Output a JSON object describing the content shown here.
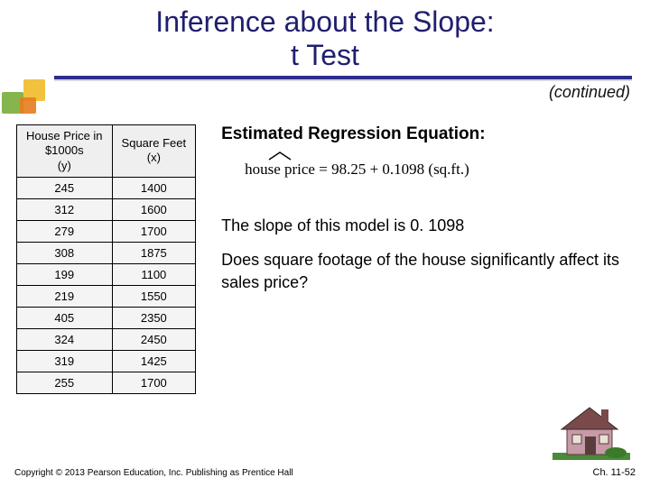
{
  "title": {
    "line1": "Inference about the Slope:",
    "line2": "t Test"
  },
  "continued": "(continued)",
  "table": {
    "headers": {
      "col1": "House Price in\n$1000s\n(y)",
      "col2": "Square Feet\n(x)"
    },
    "rows": [
      [
        "245",
        "1400"
      ],
      [
        "312",
        "1600"
      ],
      [
        "279",
        "1700"
      ],
      [
        "308",
        "1875"
      ],
      [
        "199",
        "1100"
      ],
      [
        "219",
        "1550"
      ],
      [
        "405",
        "2350"
      ],
      [
        "324",
        "2450"
      ],
      [
        "319",
        "1425"
      ],
      [
        "255",
        "1700"
      ]
    ]
  },
  "right": {
    "heading": "Estimated Regression Equation:",
    "equation": "house price = 98.25 + 0.1098 (sq.ft.)",
    "slope_text": "The slope of this model is 0. 1098",
    "question": "Does square footage of the house significantly affect its sales price?"
  },
  "footer": "Copyright © 2013 Pearson Education, Inc. Publishing as Prentice Hall",
  "pagenum": "Ch. 11-52",
  "colors": {
    "title": "#1f1f6f",
    "rule": "#2d2d8c",
    "deco_yellow": "#f2c23e",
    "deco_green": "#7aad3a",
    "deco_orange": "#e57c1e",
    "house_roof": "#7a4a4a",
    "house_wall": "#c79aa8",
    "house_door": "#5a3c3c",
    "grass": "#4a8a3a"
  }
}
